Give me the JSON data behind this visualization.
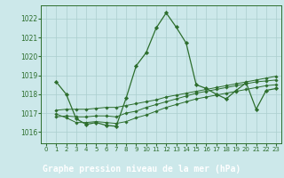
{
  "bg_color": "#cce8ea",
  "label_bg": "#3a7a3a",
  "grid_color": "#aacece",
  "line_color": "#2d6e2d",
  "marker_color": "#2d6e2d",
  "xlabel": "Graphe pression niveau de la mer (hPa)",
  "xlabel_fontsize": 7,
  "ytick_vals": [
    1016,
    1017,
    1018,
    1019,
    1020,
    1021,
    1022
  ],
  "xtick_vals": [
    0,
    1,
    2,
    3,
    4,
    5,
    6,
    7,
    8,
    9,
    10,
    11,
    12,
    13,
    14,
    15,
    16,
    17,
    18,
    19,
    20,
    21,
    22,
    23
  ],
  "ylim": [
    1015.4,
    1022.7
  ],
  "xlim": [
    -0.5,
    23.5
  ],
  "series0_x": [
    1,
    2,
    3,
    4,
    5,
    6,
    7,
    8,
    9,
    10,
    11,
    12,
    13,
    14,
    15,
    16,
    17,
    18,
    19,
    20,
    21,
    22,
    23
  ],
  "series0_y": [
    1018.65,
    1018.0,
    1016.7,
    1016.4,
    1016.5,
    1016.35,
    1016.3,
    1017.8,
    1019.5,
    1020.2,
    1021.5,
    1022.3,
    1021.55,
    1020.7,
    1018.5,
    1018.3,
    1018.0,
    1017.75,
    1018.2,
    1018.6,
    1017.2,
    1018.2,
    1018.3
  ],
  "series1_x": [
    1,
    2,
    3,
    4,
    5,
    6,
    7,
    8,
    9,
    10,
    11,
    12,
    13,
    14,
    15,
    16,
    17,
    18,
    19,
    20,
    21,
    22,
    23
  ],
  "series1_y": [
    1016.95,
    1016.75,
    1016.5,
    1016.5,
    1016.55,
    1016.5,
    1016.45,
    1016.55,
    1016.75,
    1016.9,
    1017.1,
    1017.3,
    1017.45,
    1017.6,
    1017.75,
    1017.85,
    1017.95,
    1018.05,
    1018.15,
    1018.25,
    1018.35,
    1018.45,
    1018.5
  ],
  "series2_x": [
    1,
    2,
    3,
    4,
    5,
    6,
    7,
    8,
    9,
    10,
    11,
    12,
    13,
    14,
    15,
    16,
    17,
    18,
    19,
    20,
    21,
    22,
    23
  ],
  "series2_y": [
    1016.8,
    1016.85,
    1016.8,
    1016.8,
    1016.85,
    1016.85,
    1016.8,
    1017.0,
    1017.1,
    1017.3,
    1017.45,
    1017.6,
    1017.75,
    1017.9,
    1018.05,
    1018.15,
    1018.25,
    1018.35,
    1018.45,
    1018.55,
    1018.65,
    1018.7,
    1018.75
  ],
  "series3_x": [
    1,
    2,
    3,
    4,
    5,
    6,
    7,
    8,
    9,
    10,
    11,
    12,
    13,
    14,
    15,
    16,
    17,
    18,
    19,
    20,
    21,
    22,
    23
  ],
  "series3_y": [
    1017.15,
    1017.2,
    1017.2,
    1017.2,
    1017.25,
    1017.3,
    1017.3,
    1017.4,
    1017.5,
    1017.6,
    1017.7,
    1017.85,
    1017.95,
    1018.05,
    1018.15,
    1018.25,
    1018.35,
    1018.45,
    1018.55,
    1018.65,
    1018.75,
    1018.85,
    1018.95
  ]
}
